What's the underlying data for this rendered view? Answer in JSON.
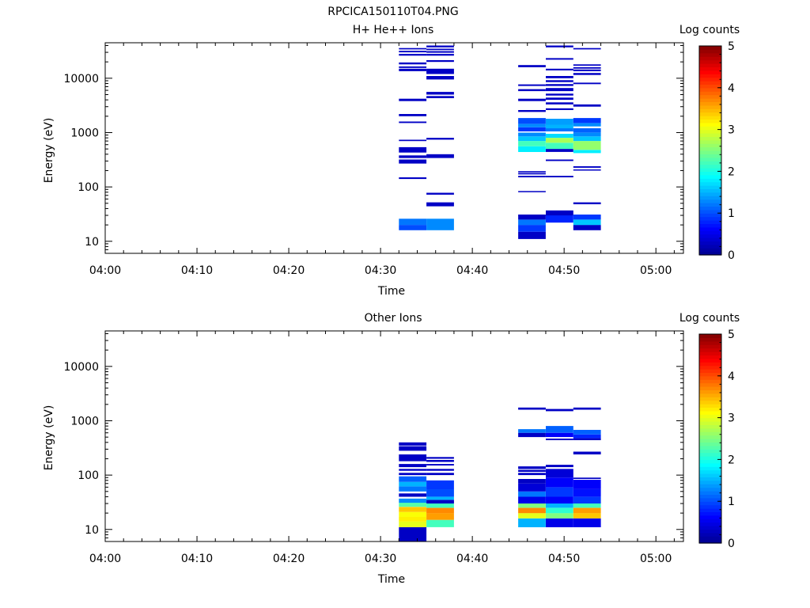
{
  "figure_title": "RPCICA150110T04.PNG",
  "colormap": [
    "#00008f",
    "#0000ff",
    "#0080ff",
    "#00ffff",
    "#80ff80",
    "#ffff00",
    "#ff8000",
    "#ff0000",
    "#800000"
  ],
  "chart_data": [
    {
      "type": "heatmap",
      "title": "H+ He++ Ions",
      "xlabel": "Time",
      "ylabel": "Energy (eV)",
      "xlim": [
        "04:00",
        "05:03"
      ],
      "x_ticks": [
        "04:00",
        "04:10",
        "04:20",
        "04:30",
        "04:40",
        "04:50",
        "05:00"
      ],
      "y_scale": "log",
      "ylim": [
        6,
        45000
      ],
      "y_ticks": [
        "10",
        "100",
        "1000",
        "10000"
      ],
      "colorbar": {
        "label": "Log counts",
        "range": [
          0,
          5
        ],
        "ticks": [
          "0",
          "1",
          "2",
          "3",
          "4",
          "5"
        ]
      },
      "columns": [
        {
          "t_start": "04:32",
          "t_end": "04:35",
          "cells": [
            [
              16,
              20,
              1.0
            ],
            [
              20,
              26,
              1.2
            ],
            [
              140,
              150,
              0.3
            ],
            [
              270,
              320,
              0.3
            ],
            [
              340,
              380,
              0.3
            ],
            [
              430,
              540,
              0.3
            ],
            [
              700,
              740,
              0.3
            ],
            [
              1500,
              1600,
              0.3
            ],
            [
              2000,
              2200,
              0.3
            ],
            [
              3800,
              4200,
              0.3
            ],
            [
              13500,
              15000,
              0.3
            ],
            [
              15500,
              16500,
              0.3
            ],
            [
              18000,
              19500,
              0.3
            ],
            [
              26000,
              28000,
              0.3
            ],
            [
              30000,
              32000,
              0.3
            ],
            [
              34000,
              36000,
              0.3
            ]
          ]
        },
        {
          "t_start": "04:35",
          "t_end": "04:38",
          "cells": [
            [
              16,
              26,
              1.3
            ],
            [
              44,
              52,
              0.3
            ],
            [
              72,
              78,
              0.3
            ],
            [
              340,
              400,
              0.3
            ],
            [
              740,
              800,
              0.3
            ],
            [
              4300,
              4700,
              0.3
            ],
            [
              5000,
              5600,
              0.3
            ],
            [
              9500,
              11000,
              0.3
            ],
            [
              12000,
              15000,
              0.3
            ],
            [
              20000,
              21500,
              0.3
            ],
            [
              26000,
              28000,
              0.3
            ],
            [
              29500,
              31500,
              0.3
            ],
            [
              33000,
              35000,
              0.3
            ],
            [
              37000,
              40000,
              0.3
            ]
          ]
        },
        {
          "t_start": "04:45",
          "t_end": "04:48",
          "cells": [
            [
              11,
              15,
              0.3
            ],
            [
              15,
              20,
              0.9
            ],
            [
              20,
              25,
              1.2
            ],
            [
              25,
              31,
              0.3
            ],
            [
              80,
              84,
              0.3
            ],
            [
              150,
              160,
              0.3
            ],
            [
              170,
              180,
              0.3
            ],
            [
              185,
              195,
              0.3
            ],
            [
              440,
              560,
              1.8
            ],
            [
              560,
              700,
              2.2
            ],
            [
              700,
              850,
              1.6
            ],
            [
              850,
              1000,
              1.3
            ],
            [
              1050,
              1250,
              0.9
            ],
            [
              1250,
              1450,
              1.3
            ],
            [
              1450,
              1850,
              1.0
            ],
            [
              2400,
              2600,
              0.3
            ],
            [
              3800,
              4200,
              0.3
            ],
            [
              5800,
              6300,
              0.3
            ],
            [
              7200,
              7700,
              0.3
            ],
            [
              16000,
              17500,
              0.3
            ]
          ]
        },
        {
          "t_start": "04:48",
          "t_end": "04:51",
          "cells": [
            [
              22,
              30,
              0.8
            ],
            [
              30,
              37,
              0.3
            ],
            [
              150,
              160,
              0.3
            ],
            [
              300,
              320,
              0.3
            ],
            [
              440,
              500,
              0.3
            ],
            [
              500,
              650,
              2.2
            ],
            [
              650,
              800,
              2.7
            ],
            [
              800,
              950,
              1.7
            ],
            [
              1050,
              1200,
              1.2
            ],
            [
              1200,
              1400,
              1.5
            ],
            [
              1400,
              1800,
              1.4
            ],
            [
              2600,
              2800,
              0.3
            ],
            [
              3300,
              3600,
              0.3
            ],
            [
              4000,
              4400,
              0.3
            ],
            [
              4800,
              5200,
              0.3
            ],
            [
              5800,
              6600,
              0.3
            ],
            [
              7200,
              7800,
              0.3
            ],
            [
              8500,
              9200,
              0.3
            ],
            [
              10000,
              11000,
              0.3
            ],
            [
              14000,
              15000,
              0.3
            ],
            [
              22000,
              23500,
              0.3
            ],
            [
              37000,
              40000,
              0.3
            ]
          ]
        },
        {
          "t_start": "04:51",
          "t_end": "04:54",
          "cells": [
            [
              16,
              20,
              0.3
            ],
            [
              20,
              25,
              1.6
            ],
            [
              25,
              31,
              0.9
            ],
            [
              48,
              52,
              0.3
            ],
            [
              200,
              210,
              0.3
            ],
            [
              225,
              240,
              0.3
            ],
            [
              420,
              480,
              1.8
            ],
            [
              480,
              700,
              2.6
            ],
            [
              700,
              850,
              1.6
            ],
            [
              850,
              1000,
              1.3
            ],
            [
              1000,
              1200,
              1.1
            ],
            [
              1300,
              1500,
              1.3
            ],
            [
              1500,
              1850,
              0.9
            ],
            [
              3000,
              3300,
              0.3
            ],
            [
              7800,
              8300,
              0.3
            ],
            [
              11500,
              12500,
              0.3
            ],
            [
              13500,
              14500,
              0.3
            ],
            [
              15000,
              16000,
              0.3
            ],
            [
              17000,
              18000,
              0.3
            ],
            [
              34000,
              36000,
              0.3
            ]
          ]
        }
      ]
    },
    {
      "type": "heatmap",
      "title": "Other Ions",
      "xlabel": "Time",
      "ylabel": "Energy (eV)",
      "xlim": [
        "04:00",
        "05:03"
      ],
      "x_ticks": [
        "04:00",
        "04:10",
        "04:20",
        "04:30",
        "04:40",
        "04:50",
        "05:00"
      ],
      "y_scale": "log",
      "ylim": [
        6,
        45000
      ],
      "y_ticks": [
        "10",
        "100",
        "1000",
        "10000"
      ],
      "colorbar": {
        "label": "Log counts",
        "range": [
          0,
          5
        ],
        "ticks": [
          "0",
          "1",
          "2",
          "3",
          "4",
          "5"
        ]
      },
      "columns": [
        {
          "t_start": "04:32",
          "t_end": "04:35",
          "cells": [
            [
              6,
              11,
              0.3
            ],
            [
              11,
              14,
              3.0
            ],
            [
              14,
              17,
              3.2
            ],
            [
              17,
              21,
              3.1
            ],
            [
              21,
              26,
              3.4
            ],
            [
              26,
              31,
              2.3
            ],
            [
              31,
              37,
              1.3
            ],
            [
              40,
              46,
              0.3
            ],
            [
              50,
              62,
              1.2
            ],
            [
              62,
              75,
              1.5
            ],
            [
              75,
              95,
              1.1
            ],
            [
              100,
              110,
              0.3
            ],
            [
              120,
              130,
              0.3
            ],
            [
              140,
              160,
              0.3
            ],
            [
              180,
              240,
              0.3
            ],
            [
              280,
              340,
              0.3
            ],
            [
              350,
              400,
              0.3
            ]
          ]
        },
        {
          "t_start": "04:35",
          "t_end": "04:38",
          "cells": [
            [
              11,
              15,
              2.2
            ],
            [
              15,
              20,
              3.6
            ],
            [
              20,
              25,
              3.7
            ],
            [
              25,
              30,
              2.2
            ],
            [
              30,
              35,
              0.3
            ],
            [
              35,
              40,
              1.5
            ],
            [
              40,
              55,
              1.0
            ],
            [
              55,
              80,
              0.9
            ],
            [
              100,
              110,
              0.3
            ],
            [
              120,
              130,
              0.3
            ],
            [
              150,
              160,
              0.3
            ],
            [
              175,
              190,
              0.3
            ],
            [
              200,
              215,
              0.3
            ]
          ]
        },
        {
          "t_start": "04:45",
          "t_end": "04:48",
          "cells": [
            [
              11,
              16,
              1.5
            ],
            [
              16,
              20,
              3.0
            ],
            [
              20,
              25,
              3.7
            ],
            [
              25,
              30,
              2.5
            ],
            [
              30,
              40,
              0.5
            ],
            [
              40,
              50,
              1.2
            ],
            [
              50,
              70,
              0.4
            ],
            [
              70,
              85,
              0.3
            ],
            [
              100,
              110,
              0.3
            ],
            [
              115,
              125,
              0.3
            ],
            [
              130,
              145,
              0.3
            ],
            [
              500,
              600,
              0.3
            ],
            [
              600,
              700,
              1.2
            ],
            [
              1600,
              1750,
              0.3
            ]
          ]
        },
        {
          "t_start": "04:48",
          "t_end": "04:51",
          "cells": [
            [
              11,
              16,
              0.5
            ],
            [
              16,
              20,
              2.5
            ],
            [
              20,
              25,
              2.1
            ],
            [
              25,
              30,
              1.5
            ],
            [
              30,
              40,
              0.6
            ],
            [
              40,
              60,
              0.9
            ],
            [
              60,
              90,
              0.6
            ],
            [
              90,
              130,
              0.4
            ],
            [
              140,
              155,
              0.3
            ],
            [
              440,
              470,
              0.3
            ],
            [
              500,
              600,
              0.6
            ],
            [
              600,
              800,
              1.1
            ],
            [
              1500,
              1650,
              0.3
            ]
          ]
        },
        {
          "t_start": "04:51",
          "t_end": "04:54",
          "cells": [
            [
              11,
              16,
              0.5
            ],
            [
              16,
              20,
              3.4
            ],
            [
              20,
              25,
              3.6
            ],
            [
              25,
              30,
              2.2
            ],
            [
              30,
              40,
              0.9
            ],
            [
              40,
              55,
              0.7
            ],
            [
              55,
              82,
              0.6
            ],
            [
              85,
              90,
              0.3
            ],
            [
              240,
              270,
              0.3
            ],
            [
              440,
              480,
              0.3
            ],
            [
              480,
              560,
              0.8
            ],
            [
              560,
              680,
              1.1
            ],
            [
              1600,
              1750,
              0.3
            ]
          ]
        }
      ]
    }
  ]
}
